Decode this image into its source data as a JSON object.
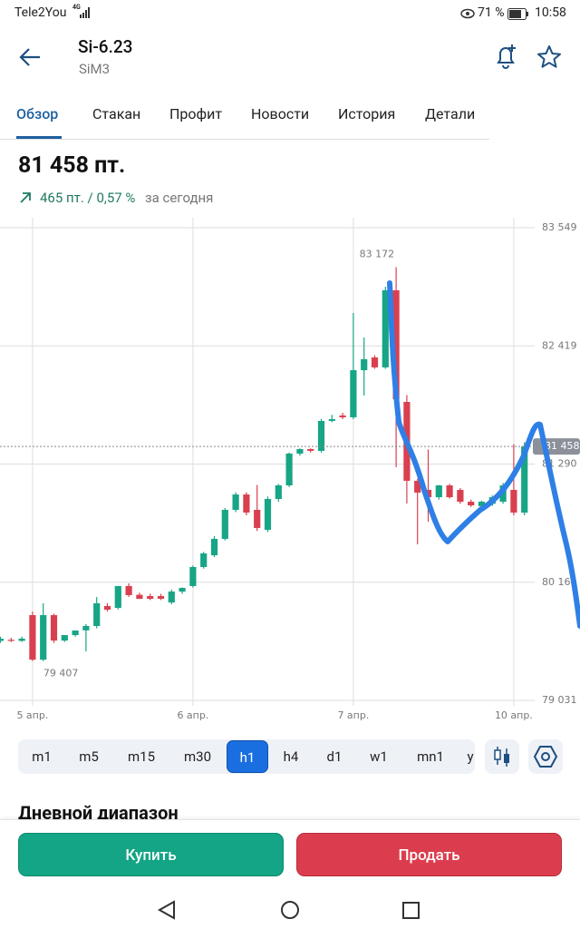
{
  "status_bar": {
    "carrier": "Tele2You",
    "network": "4G",
    "battery": "71 %",
    "time": "10:58"
  },
  "header": {
    "title": "Si-6.23",
    "subtitle": "SiM3"
  },
  "tabs": [
    "Обзор",
    "Стакан",
    "Профит",
    "Новости",
    "История",
    "Детали"
  ],
  "active_tab": 0,
  "price": {
    "value": "81 458 пт.",
    "change": "465 пт. / 0,57 %",
    "change_suffix": "за сегодня"
  },
  "chart_data": {
    "type": "candlestick",
    "categories": [
      null,
      null,
      null,
      "5 апр.",
      null,
      null,
      null,
      null,
      null,
      null,
      null,
      null,
      null,
      null,
      null,
      null,
      null,
      null,
      "6 апр.",
      null,
      null,
      null,
      null,
      null,
      null,
      null,
      null,
      null,
      null,
      null,
      null,
      null,
      null,
      "7 апр.",
      null,
      null,
      null,
      null,
      null,
      null,
      null,
      null,
      null,
      null,
      null,
      null,
      null,
      null,
      "10 апр.",
      null
    ],
    "open": [
      79600,
      79610,
      79600,
      79846,
      79420,
      79846,
      79603,
      79655,
      79700,
      79742,
      79933,
      79915,
      80124,
      80040,
      80028,
      80028,
      79967,
      80071,
      80124,
      80306,
      80418,
      80575,
      80852,
      80999,
      80852,
      80661,
      80956,
      81086,
      81390,
      81433,
      81416,
      81702,
      81754,
      81737,
      82187,
      82309,
      82214,
      82951,
      81884,
      81130,
      81043,
      80973,
      81086,
      81043,
      80930,
      80887,
      80910,
      80930,
      81043,
      80826
    ],
    "high": [
      79640,
      79630,
      79640,
      79880,
      79959,
      79860,
      79640,
      79700,
      79760,
      80019,
      79960,
      80124,
      80150,
      80060,
      80050,
      80050,
      80090,
      80110,
      80320,
      80450,
      80600,
      80870,
      81020,
      81020,
      81090,
      80980,
      81100,
      81400,
      81440,
      81440,
      81720,
      81760,
      81780,
      82734,
      82500,
      82330,
      82985,
      83172,
      81950,
      81150,
      81430,
      81090,
      81100,
      81060,
      80950,
      80940,
      80990,
      81110,
      81480,
      81500
    ],
    "low": [
      79580,
      79590,
      79590,
      79407,
      79407,
      79580,
      79590,
      79640,
      79500,
      79720,
      79880,
      79900,
      80020,
      80000,
      79990,
      79990,
      79950,
      80050,
      80110,
      80290,
      80400,
      80560,
      80830,
      80800,
      80650,
      80640,
      80930,
      81070,
      81370,
      81400,
      81400,
      81690,
      81720,
      81720,
      81945,
      82200,
      82200,
      81260,
      80913,
      80522,
      80739,
      80950,
      80960,
      80910,
      80880,
      80870,
      80890,
      80910,
      80800,
      80800
    ],
    "close": [
      79620,
      79600,
      79621,
      79420,
      79846,
      79603,
      79655,
      79699,
      79742,
      79959,
      79898,
      80124,
      80037,
      80002,
      80002,
      80002,
      80071,
      80106,
      80306,
      80436,
      80575,
      80852,
      80999,
      80826,
      80679,
      80956,
      81086,
      81390,
      81433,
      81416,
      81702,
      81719,
      81737,
      82187,
      82292,
      82214,
      82951,
      81910,
      81130,
      81017,
      80973,
      81086,
      80973,
      80930,
      80895,
      80930,
      80973,
      81086,
      80826,
      81458
    ],
    "up_color": "#17a586",
    "down_color": "#d9404f",
    "ylim": [
      79031,
      83549
    ],
    "yticks": [
      {
        "value": 83549,
        "label": "83 549"
      },
      {
        "value": 82419,
        "label": "82 419"
      },
      {
        "value": 81290,
        "label": "81 290"
      },
      {
        "value": 80160,
        "label": "80 160"
      },
      {
        "value": 79031,
        "label": "79 031"
      }
    ],
    "grid": true,
    "last_price": {
      "value": 81458,
      "label": "81 458"
    },
    "annotations": [
      {
        "value": 83172,
        "label": "83 172"
      },
      {
        "value": 79407,
        "label": "79 407"
      }
    ]
  },
  "timeframes": [
    "m1",
    "m5",
    "m15",
    "m30",
    "h1",
    "h4",
    "d1",
    "w1",
    "mn1",
    "y"
  ],
  "active_timeframe": 4,
  "section_title": "Дневной диапазон",
  "buttons": {
    "buy": "Купить",
    "sell": "Продать"
  }
}
